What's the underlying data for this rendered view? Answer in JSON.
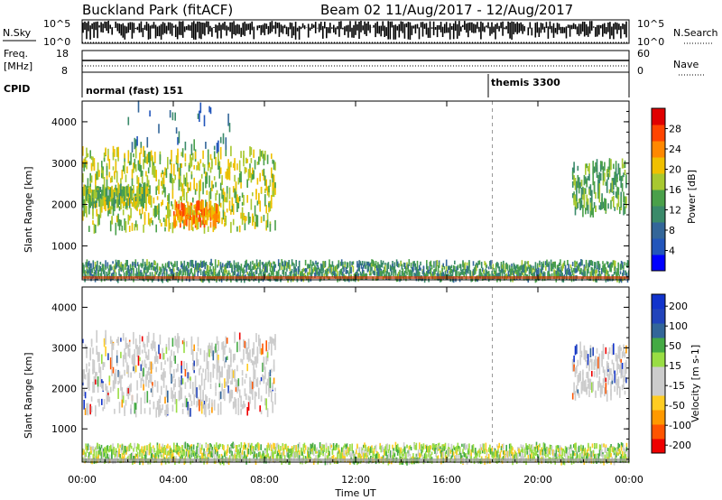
{
  "header": {
    "station_title": "Buckland Park (fitACF)",
    "beam_title": "Beam 02 11/Aug/2017 - 12/Aug/2017"
  },
  "panel_labels": {
    "nsky": "N.Sky",
    "nsky_top": "10^5",
    "nsky_bottom": "10^0",
    "nsearch": "N.Search",
    "nsearch_top": "10^5",
    "nsearch_bottom": "10^0",
    "freq": "Freq.",
    "freq_unit": "[MHz]",
    "freq_top": "18",
    "freq_bottom": "8",
    "nave": "Nave",
    "nave_top": "60",
    "nave_bottom": "0",
    "cpid": "CPID",
    "cpid_modes": [
      {
        "text": "normal (fast) 151",
        "start_hour": 0
      },
      {
        "text": "themis 3300",
        "start_hour": 18
      }
    ]
  },
  "x_axis": {
    "label": "Time UT",
    "tick_labels": [
      "00:00",
      "04:00",
      "08:00",
      "12:00",
      "16:00",
      "20:00",
      "00:00"
    ]
  },
  "colors": {
    "power_scale": [
      "#0000ff",
      "#2255bb",
      "#336699",
      "#3a8a6a",
      "#4aa04a",
      "#a8c830",
      "#f0c000",
      "#ff8800",
      "#ff4400",
      "#e00000"
    ],
    "velocity_scale": [
      "#ee0000",
      "#ff5500",
      "#ff9900",
      "#ffcc22",
      "#cccccc",
      "#cccccc",
      "#99dd44",
      "#44aa44",
      "#336699",
      "#2244bb",
      "#1133cc"
    ],
    "ground_scatter": "#888888"
  },
  "chart_data": [
    {
      "type": "heatmap",
      "name": "power",
      "ylabel": "Slant Range [km]",
      "yticks": [
        1000,
        2000,
        3000,
        4000
      ],
      "ylim": [
        180,
        4500
      ],
      "xlim_hours": [
        0,
        24
      ],
      "colorbar": {
        "label": "Power [dB]",
        "range": [
          0,
          32
        ],
        "tick_labels": [
          "4",
          "8",
          "12",
          "16",
          "20",
          "24",
          "28"
        ]
      },
      "regions": [
        {
          "hours": [
            0,
            8.5
          ],
          "range_km": [
            1400,
            3300
          ],
          "typical_value": 18
        },
        {
          "hours": [
            0,
            3
          ],
          "range_km": [
            2000,
            2400
          ],
          "typical_value": 16
        },
        {
          "hours": [
            4,
            6
          ],
          "range_km": [
            1500,
            2000
          ],
          "typical_value": 24
        },
        {
          "hours": [
            2,
            6.5
          ],
          "range_km": [
            3300,
            4400
          ],
          "typical_value": 8
        },
        {
          "hours": [
            21.5,
            23.9
          ],
          "range_km": [
            1800,
            3000
          ],
          "typical_value": 14
        },
        {
          "hours": [
            0,
            24
          ],
          "range_km": [
            180,
            600
          ],
          "typical_value": 12
        }
      ]
    },
    {
      "type": "heatmap",
      "name": "velocity",
      "ylabel": "Slant Range [km]",
      "yticks": [
        1000,
        2000,
        3000,
        4000
      ],
      "ylim": [
        180,
        4500
      ],
      "xlim_hours": [
        0,
        24
      ],
      "colorbar": {
        "label": "Velocity [m s-1]",
        "range": [
          -250,
          250
        ],
        "tick_labels": [
          "200",
          "100",
          "50",
          "15",
          "-15",
          "-50",
          "-100",
          "-200"
        ]
      },
      "regions": [
        {
          "hours": [
            0,
            8.5
          ],
          "range_km": [
            1400,
            3300
          ],
          "typical_value": 0
        },
        {
          "hours": [
            21.5,
            23.9
          ],
          "range_km": [
            1800,
            3000
          ],
          "typical_value": 0
        },
        {
          "hours": [
            0,
            24
          ],
          "range_km": [
            180,
            600
          ],
          "typical_value": 20
        }
      ]
    }
  ]
}
